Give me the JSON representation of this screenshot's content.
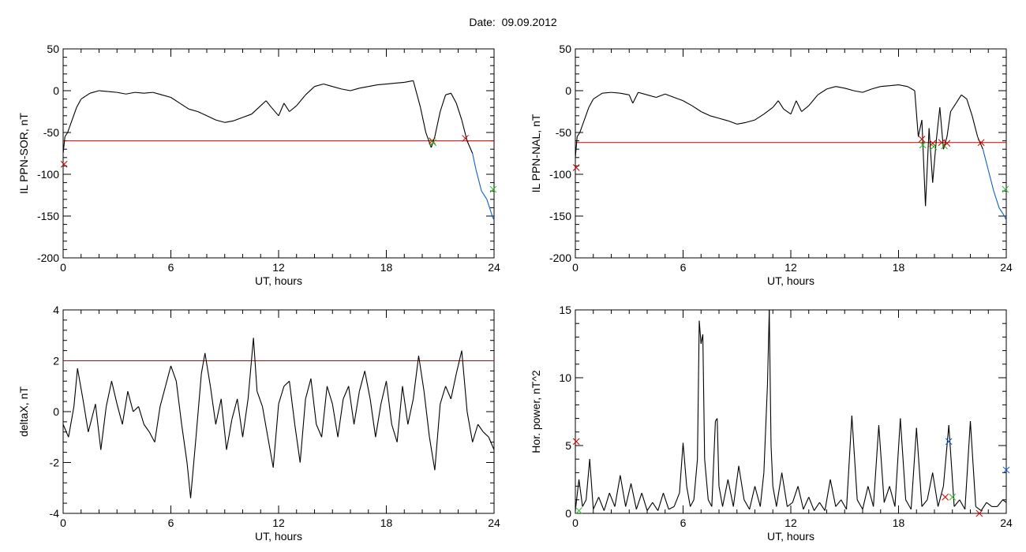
{
  "figure": {
    "title_label": "Date:",
    "title_date": "09.09.2012"
  },
  "colors": {
    "trace": "#000000",
    "threshold": "#cc0000",
    "low_segment": "#1060c0",
    "marker_red": "#cc0000",
    "marker_green": "#22bb22",
    "marker_blue": "#1060c0"
  },
  "chart_data": [
    {
      "id": "ppn-sor",
      "type": "line",
      "ylabel": "IL PPN-SOR, nT",
      "xlabel": "UT, hours",
      "xlim": [
        0,
        24
      ],
      "ylim": [
        -200,
        50
      ],
      "xticks": [
        "0",
        "6",
        "12",
        "18",
        "24"
      ],
      "yticks": [
        "-200",
        "-150",
        "-100",
        "-50",
        "0",
        "50"
      ],
      "threshold": -60,
      "x": [
        0,
        0.1,
        0.25,
        0.5,
        0.75,
        1.0,
        1.5,
        2.0,
        2.5,
        3.0,
        3.5,
        4.0,
        4.5,
        5.0,
        5.5,
        6.0,
        6.5,
        7.0,
        7.5,
        8.0,
        8.5,
        9.0,
        9.5,
        10.0,
        10.5,
        11.0,
        11.3,
        11.6,
        12.0,
        12.3,
        12.6,
        13.0,
        13.5,
        14.0,
        14.5,
        15.0,
        15.5,
        16.0,
        16.5,
        17.0,
        17.5,
        18.0,
        18.5,
        19.0,
        19.5,
        19.9,
        20.2,
        20.5,
        20.7,
        21.0,
        21.3,
        21.6,
        21.9,
        22.2,
        22.5,
        22.8,
        23.0,
        23.3,
        23.6,
        23.9,
        24.0
      ],
      "y": [
        -75,
        -55,
        -50,
        -35,
        -20,
        -10,
        -3,
        0,
        -1,
        -2,
        -4,
        -2,
        -3,
        -2,
        -5,
        -8,
        -15,
        -22,
        -25,
        -30,
        -35,
        -38,
        -36,
        -32,
        -28,
        -18,
        -12,
        -20,
        -30,
        -15,
        -25,
        -18,
        -5,
        5,
        8,
        5,
        2,
        0,
        3,
        5,
        7,
        8,
        9,
        10,
        12,
        -20,
        -50,
        -68,
        -55,
        -25,
        -5,
        -3,
        -15,
        -35,
        -60,
        -75,
        -95,
        -120,
        -130,
        -150,
        -155
      ],
      "markers": [
        {
          "x": 0.05,
          "y": -88,
          "color": "red"
        },
        {
          "x": 20.55,
          "y": -60,
          "color": "red"
        },
        {
          "x": 20.6,
          "y": -62,
          "color": "green"
        },
        {
          "x": 22.4,
          "y": -57,
          "color": "red"
        },
        {
          "x": 23.95,
          "y": -118,
          "color": "green"
        }
      ]
    },
    {
      "id": "ppn-nal",
      "type": "line",
      "ylabel": "IL PPN-NAL, nT",
      "xlabel": "UT, hours",
      "xlim": [
        0,
        24
      ],
      "ylim": [
        -200,
        50
      ],
      "xticks": [
        "0",
        "6",
        "12",
        "18",
        "24"
      ],
      "yticks": [
        "-200",
        "-150",
        "-100",
        "-50",
        "0",
        "50"
      ],
      "threshold": -62,
      "x": [
        0,
        0.1,
        0.25,
        0.5,
        0.75,
        1.0,
        1.5,
        2.0,
        2.5,
        3.0,
        3.2,
        3.5,
        4.0,
        4.5,
        5.0,
        5.5,
        6.0,
        6.5,
        7.0,
        7.5,
        8.0,
        8.5,
        9.0,
        9.5,
        10.0,
        10.5,
        11.0,
        11.3,
        11.6,
        12.0,
        12.3,
        12.6,
        13.0,
        13.5,
        14.0,
        14.5,
        15.0,
        15.5,
        16.0,
        16.5,
        17.0,
        17.5,
        18.0,
        18.5,
        18.9,
        19.1,
        19.3,
        19.5,
        19.7,
        19.9,
        20.1,
        20.3,
        20.5,
        20.7,
        20.9,
        21.2,
        21.5,
        21.8,
        22.1,
        22.4,
        22.7,
        23.0,
        23.3,
        23.6,
        23.9,
        24.0
      ],
      "y": [
        -80,
        -55,
        -50,
        -35,
        -20,
        -10,
        -3,
        -2,
        -3,
        -5,
        -15,
        -2,
        -5,
        -8,
        -4,
        -8,
        -12,
        -18,
        -25,
        -30,
        -33,
        -36,
        -40,
        -38,
        -35,
        -28,
        -20,
        -12,
        -22,
        -28,
        -12,
        -25,
        -18,
        -5,
        2,
        5,
        3,
        0,
        -2,
        2,
        5,
        6,
        7,
        5,
        0,
        -55,
        -35,
        -138,
        -45,
        -110,
        -60,
        -20,
        -70,
        -55,
        -25,
        -15,
        -5,
        -10,
        -30,
        -55,
        -70,
        -95,
        -120,
        -140,
        -150,
        -155
      ],
      "markers": [
        {
          "x": 0.05,
          "y": -92,
          "color": "red"
        },
        {
          "x": 19.3,
          "y": -58,
          "color": "red"
        },
        {
          "x": 19.35,
          "y": -65,
          "color": "green"
        },
        {
          "x": 19.9,
          "y": -63,
          "color": "red"
        },
        {
          "x": 19.95,
          "y": -67,
          "color": "green"
        },
        {
          "x": 20.4,
          "y": -62,
          "color": "red"
        },
        {
          "x": 20.55,
          "y": -66,
          "color": "green"
        },
        {
          "x": 20.7,
          "y": -63,
          "color": "red"
        },
        {
          "x": 22.6,
          "y": -62,
          "color": "red"
        },
        {
          "x": 23.95,
          "y": -118,
          "color": "green"
        }
      ]
    },
    {
      "id": "deltax",
      "type": "line",
      "ylabel": "deltaX, nT",
      "xlabel": "UT, hours",
      "xlim": [
        0,
        24
      ],
      "ylim": [
        -4,
        4
      ],
      "xticks": [
        "0",
        "6",
        "12",
        "18",
        "24"
      ],
      "yticks": [
        "-4",
        "-2",
        "0",
        "2",
        "4"
      ],
      "threshold": 2,
      "x": [
        0,
        0.3,
        0.6,
        0.8,
        1.1,
        1.4,
        1.8,
        2.1,
        2.4,
        2.7,
        3.0,
        3.3,
        3.6,
        3.9,
        4.2,
        4.5,
        4.8,
        5.1,
        5.4,
        5.7,
        6.0,
        6.3,
        6.6,
        6.9,
        7.1,
        7.4,
        7.7,
        7.9,
        8.2,
        8.5,
        8.8,
        9.1,
        9.4,
        9.7,
        10.0,
        10.3,
        10.6,
        10.8,
        11.1,
        11.4,
        11.7,
        12.0,
        12.3,
        12.6,
        12.9,
        13.2,
        13.5,
        13.8,
        14.1,
        14.4,
        14.7,
        15.0,
        15.3,
        15.6,
        15.9,
        16.2,
        16.5,
        16.8,
        17.1,
        17.4,
        17.7,
        18.0,
        18.3,
        18.6,
        18.9,
        19.2,
        19.5,
        19.8,
        20.1,
        20.4,
        20.7,
        21.0,
        21.3,
        21.6,
        21.9,
        22.2,
        22.5,
        22.8,
        23.1,
        23.4,
        23.7,
        24.0
      ],
      "y": [
        -0.5,
        -1.0,
        0.2,
        1.7,
        0.5,
        -0.8,
        0.3,
        -1.5,
        0.2,
        1.2,
        0.3,
        -0.5,
        0.8,
        0.0,
        0.2,
        -0.5,
        -0.8,
        -1.2,
        0.2,
        1.0,
        1.8,
        1.2,
        -0.5,
        -2.0,
        -3.4,
        -1.0,
        1.5,
        2.3,
        1.0,
        -0.5,
        0.5,
        -1.5,
        -0.3,
        0.5,
        -1.0,
        0.5,
        2.9,
        0.8,
        0.2,
        -1.0,
        -2.2,
        0.3,
        1.0,
        1.2,
        -0.5,
        -2.0,
        0.5,
        1.3,
        -0.5,
        -1.0,
        1.0,
        0.3,
        -1.0,
        0.5,
        1.0,
        -0.5,
        0.8,
        1.6,
        0.5,
        -1.0,
        0.3,
        1.2,
        -0.5,
        -1.2,
        1.0,
        -0.5,
        0.5,
        2.2,
        0.8,
        -1.0,
        -2.3,
        0.3,
        1.0,
        0.5,
        1.5,
        2.4,
        0.0,
        -1.2,
        -0.5,
        -0.8,
        -1.0,
        -1.5
      ],
      "markers": []
    },
    {
      "id": "hor-power",
      "type": "line",
      "ylabel": "Hor. power, nT^2",
      "xlabel": "UT, hours",
      "xlim": [
        0,
        24
      ],
      "ylim": [
        0,
        15
      ],
      "xticks": [
        "0",
        "6",
        "12",
        "18",
        "24"
      ],
      "yticks": [
        "0",
        "5",
        "10",
        "15"
      ],
      "threshold": null,
      "x": [
        0,
        0.2,
        0.4,
        0.6,
        0.8,
        1.0,
        1.3,
        1.6,
        1.9,
        2.2,
        2.5,
        2.8,
        3.1,
        3.4,
        3.7,
        4.0,
        4.3,
        4.6,
        4.9,
        5.2,
        5.5,
        5.8,
        6.0,
        6.2,
        6.4,
        6.6,
        6.8,
        6.9,
        7.0,
        7.1,
        7.2,
        7.4,
        7.6,
        7.8,
        7.9,
        8.0,
        8.2,
        8.5,
        8.8,
        9.1,
        9.4,
        9.7,
        10.0,
        10.3,
        10.5,
        10.7,
        10.8,
        10.9,
        11.0,
        11.2,
        11.5,
        11.8,
        12.1,
        12.4,
        12.7,
        13.0,
        13.3,
        13.6,
        13.9,
        14.2,
        14.5,
        14.8,
        15.1,
        15.4,
        15.7,
        16.0,
        16.3,
        16.6,
        16.9,
        17.2,
        17.5,
        17.8,
        18.1,
        18.4,
        18.7,
        19.0,
        19.3,
        19.6,
        19.9,
        20.2,
        20.5,
        20.8,
        21.1,
        21.4,
        21.7,
        22.0,
        22.3,
        22.6,
        22.9,
        23.2,
        23.5,
        23.8,
        24.0
      ],
      "y": [
        0.2,
        2.5,
        0.5,
        1.0,
        4.0,
        0.3,
        1.2,
        0.2,
        1.5,
        0.5,
        2.8,
        0.5,
        2.2,
        0.3,
        1.5,
        0.2,
        0.8,
        0.2,
        1.5,
        0.3,
        0.5,
        1.5,
        5.2,
        2.0,
        0.5,
        1.0,
        4.0,
        14.2,
        12.5,
        13.2,
        4.0,
        1.0,
        0.5,
        6.8,
        7.0,
        2.0,
        0.5,
        2.5,
        0.5,
        3.5,
        1.0,
        0.3,
        2.0,
        0.5,
        3.0,
        9.5,
        15.0,
        5.0,
        2.0,
        0.5,
        3.0,
        0.5,
        0.8,
        2.0,
        0.3,
        1.2,
        0.2,
        0.8,
        0.2,
        2.5,
        0.5,
        1.0,
        0.3,
        7.2,
        1.0,
        0.3,
        2.0,
        0.5,
        6.5,
        0.8,
        2.0,
        0.5,
        7.0,
        1.0,
        0.3,
        6.3,
        0.5,
        1.0,
        3.0,
        0.5,
        2.0,
        6.5,
        0.5,
        1.0,
        0.3,
        6.8,
        0.5,
        0.2,
        0.8,
        0.5,
        0.5,
        1.0,
        0.8
      ],
      "markers": [
        {
          "x": 0.05,
          "y": 5.3,
          "color": "red"
        },
        {
          "x": 0.2,
          "y": 0.2,
          "color": "green"
        },
        {
          "x": 20.6,
          "y": 1.2,
          "color": "red"
        },
        {
          "x": 20.8,
          "y": 5.3,
          "color": "blue"
        },
        {
          "x": 21.0,
          "y": 1.2,
          "color": "green"
        },
        {
          "x": 22.5,
          "y": 0.0,
          "color": "red"
        },
        {
          "x": 24.0,
          "y": 3.2,
          "color": "blue"
        }
      ]
    }
  ]
}
